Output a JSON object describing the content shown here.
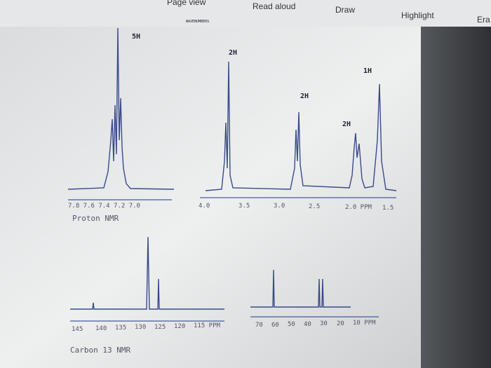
{
  "toolbar": {
    "items": [
      "Page view",
      "Read aloud",
      "Draw",
      "Highlight",
      "Era"
    ]
  },
  "proton": {
    "header": "WAVENUMBERS",
    "integrations": [
      "5H",
      "2H",
      "1H",
      "2H",
      "2H"
    ],
    "axis_left": "7.8 7.6 7.4 7.2 7.0",
    "axis_right": [
      "4.0",
      "3.5",
      "3.0",
      "2.5",
      "2.0 PPM",
      "1.5"
    ],
    "caption": "Proton NMR"
  },
  "carbon": {
    "axis_left": [
      "145",
      "140",
      "135",
      "130",
      "125",
      "120",
      "115 PPM"
    ],
    "axis_right": [
      "70",
      "60",
      "50",
      "40",
      "30",
      "20",
      "10 PPM"
    ],
    "caption": "Carbon 13 NMR"
  }
}
